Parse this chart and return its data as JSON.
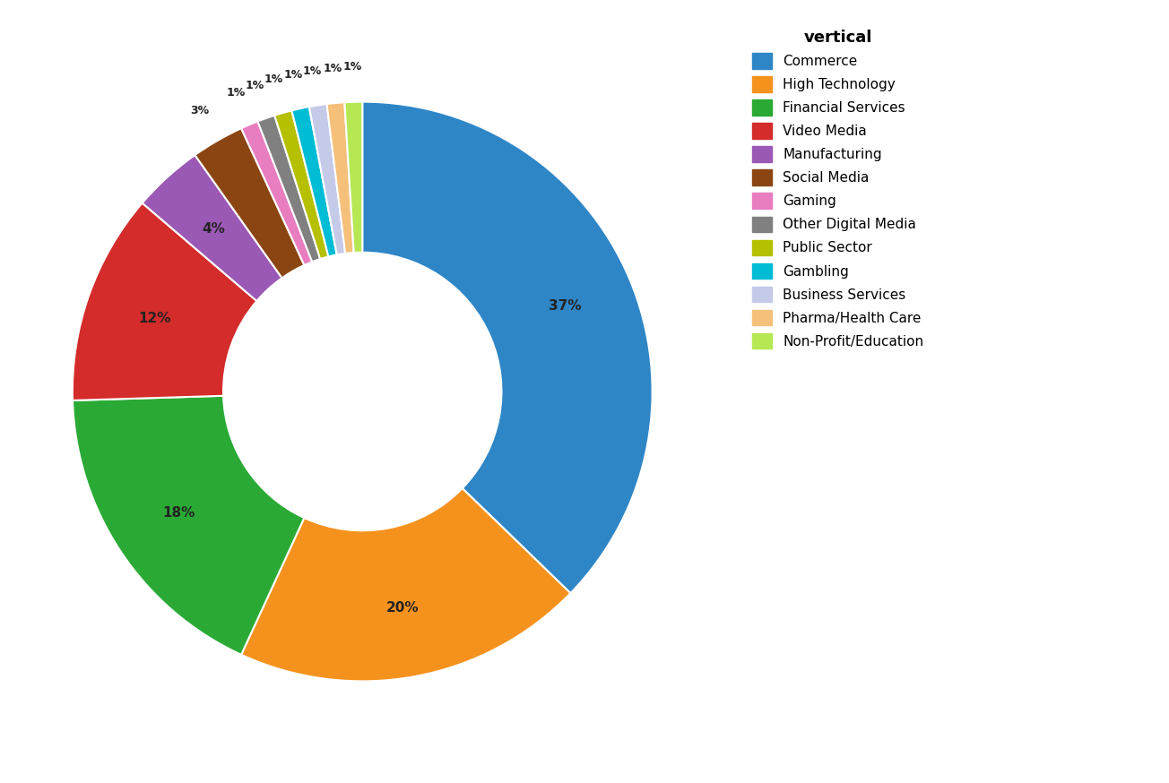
{
  "title": "vertical",
  "categories": [
    "Commerce",
    "High Technology",
    "Financial Services",
    "Video Media",
    "Manufacturing",
    "Social Media",
    "Gaming",
    "Other Digital Media",
    "Public Sector",
    "Gambling",
    "Business Services",
    "Pharma/Health Care",
    "Non-Profit/Education"
  ],
  "values": [
    38,
    20,
    18,
    12,
    4,
    3,
    1,
    1,
    1,
    1,
    1,
    1,
    1
  ],
  "colors": [
    "#2e86c7",
    "#f5921e",
    "#2aaa35",
    "#d42b2b",
    "#9b59b6",
    "#8b4513",
    "#e87dc0",
    "#808080",
    "#b5c000",
    "#00bcd4",
    "#c5cae9",
    "#f5c07a",
    "#b5e853"
  ],
  "background_color": "#ffffff",
  "label_fontsize": 11,
  "legend_title_fontsize": 13,
  "legend_fontsize": 11
}
